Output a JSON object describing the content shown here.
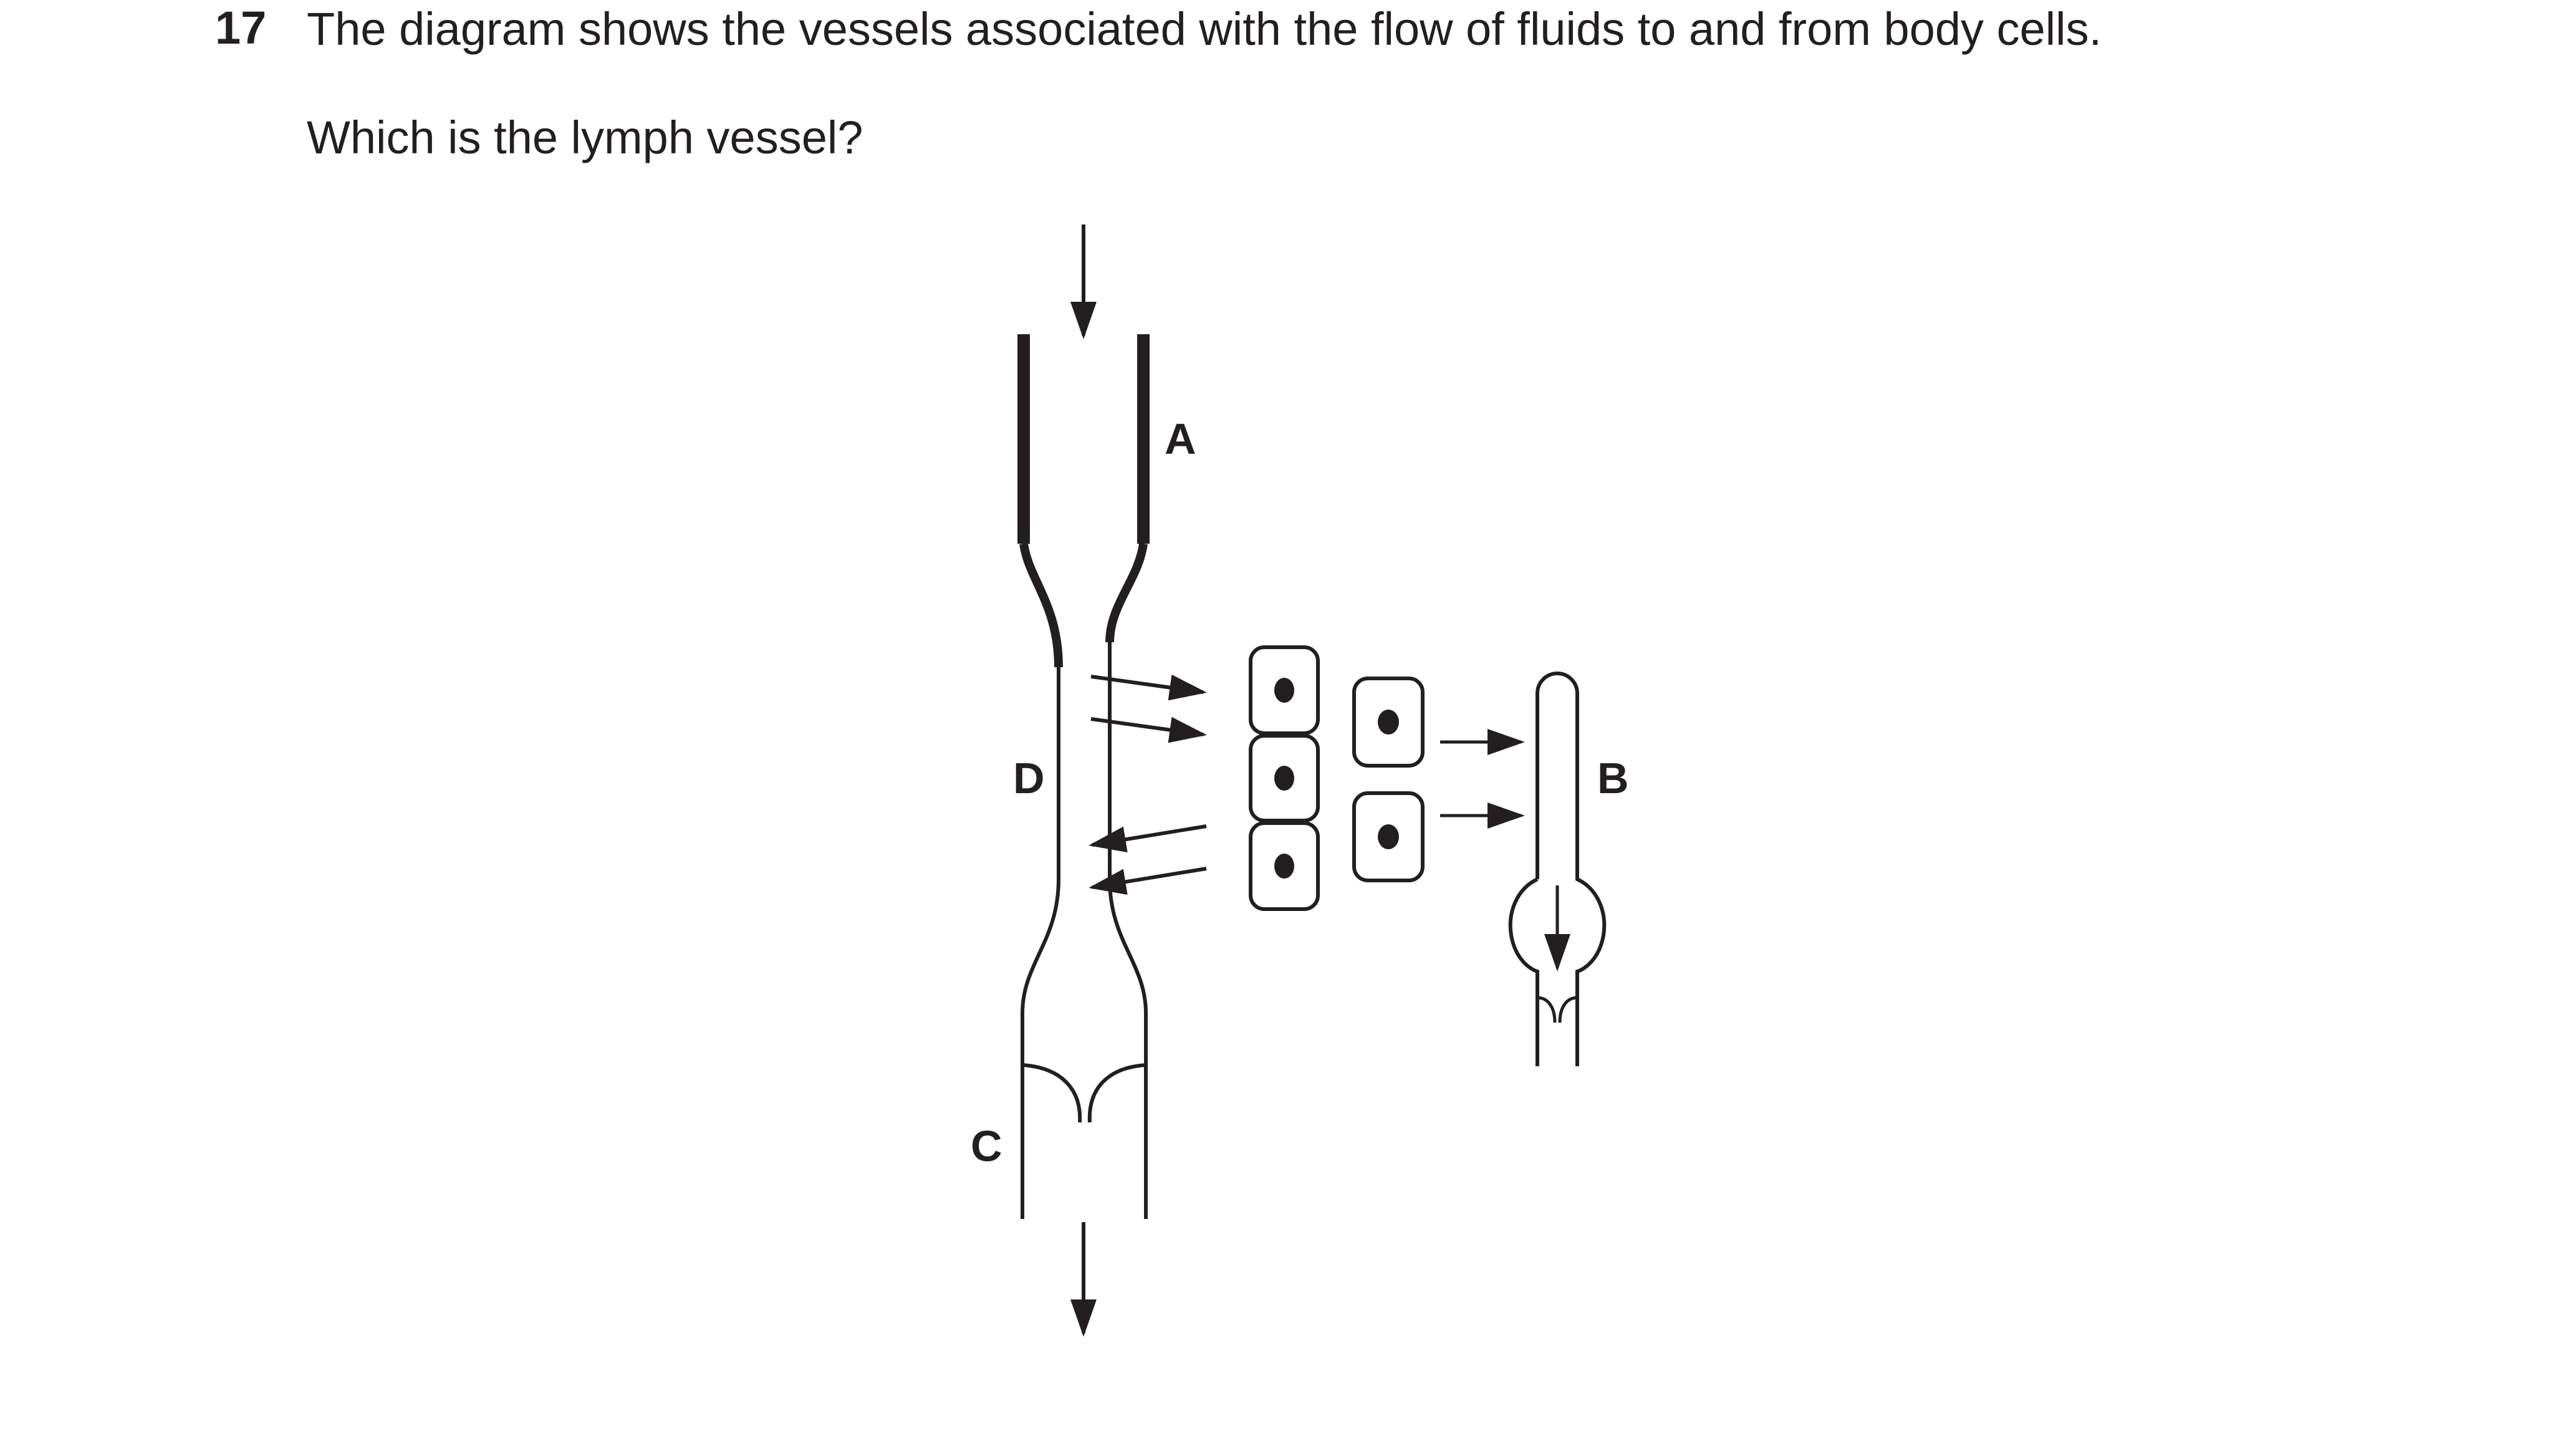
{
  "question": {
    "number": "17",
    "text": "The diagram shows the vessels associated with the flow of fluids to and from body cells.",
    "prompt": "Which is the lymph vessel?"
  },
  "diagram": {
    "labels": {
      "a": "A",
      "b": "B",
      "c": "C",
      "d": "D"
    },
    "stroke_color": "#231f20"
  }
}
